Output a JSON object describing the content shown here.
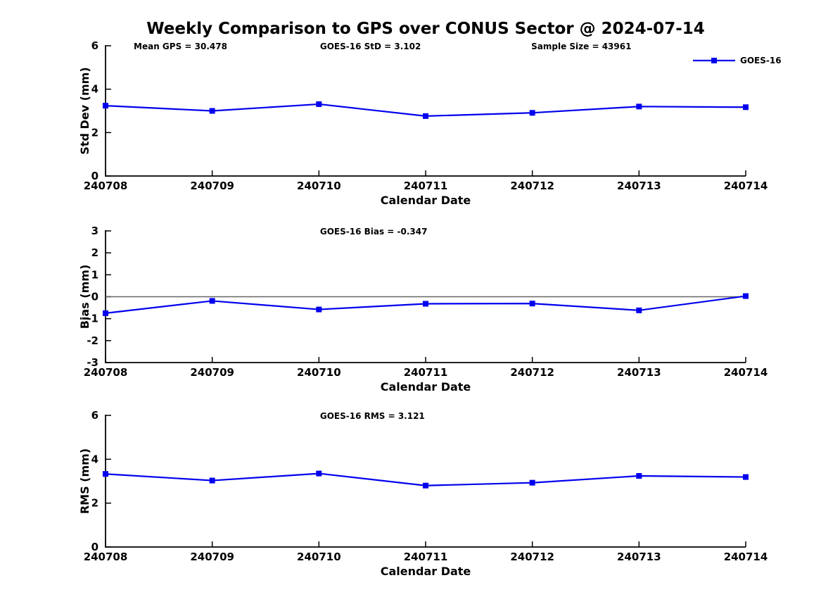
{
  "title": "Weekly Comparison to GPS over CONUS Sector @ 2024-07-14",
  "legend": {
    "label": "GOES-16",
    "marker": "square-icon"
  },
  "colors": {
    "series": "#0000ee",
    "axis": "#000000",
    "text": "#000000",
    "zero_line": "#666666"
  },
  "chart_data": [
    {
      "type": "line",
      "annotations": [
        "Mean GPS = 30.478",
        "GOES-16 StD = 3.102",
        "Sample Size = 43961"
      ],
      "x": [
        "240708",
        "240709",
        "240710",
        "240711",
        "240712",
        "240713",
        "240714"
      ],
      "xlabel": "Calendar Date",
      "ylabel": "Std Dev (mm)",
      "ylim": [
        0,
        6
      ],
      "yticks": [
        0,
        2,
        4,
        6
      ],
      "grid": false,
      "zero_line": false,
      "legend_position": "top-right",
      "series": [
        {
          "name": "GOES-16",
          "values": [
            3.24,
            3.0,
            3.31,
            2.76,
            2.91,
            3.2,
            3.17
          ]
        }
      ]
    },
    {
      "type": "line",
      "annotations": [
        "GOES-16 Bias  = -0.347"
      ],
      "x": [
        "240708",
        "240709",
        "240710",
        "240711",
        "240712",
        "240713",
        "240714"
      ],
      "xlabel": "Calendar Date",
      "ylabel": "Bias (mm)",
      "ylim": [
        -3,
        3
      ],
      "yticks": [
        -3,
        -2,
        -1,
        0,
        1,
        2,
        3
      ],
      "grid": false,
      "zero_line": true,
      "series": [
        {
          "name": "GOES-16",
          "values": [
            -0.75,
            -0.19,
            -0.58,
            -0.32,
            -0.31,
            -0.62,
            0.03
          ]
        }
      ]
    },
    {
      "type": "line",
      "annotations": [
        "GOES-16 RMS = 3.121"
      ],
      "x": [
        "240708",
        "240709",
        "240710",
        "240711",
        "240712",
        "240713",
        "240714"
      ],
      "xlabel": "Calendar Date",
      "ylabel": "RMS (mm)",
      "ylim": [
        0,
        6
      ],
      "yticks": [
        0,
        2,
        4,
        6
      ],
      "grid": false,
      "zero_line": false,
      "series": [
        {
          "name": "GOES-16",
          "values": [
            3.33,
            3.03,
            3.35,
            2.8,
            2.93,
            3.24,
            3.19
          ]
        }
      ]
    }
  ]
}
